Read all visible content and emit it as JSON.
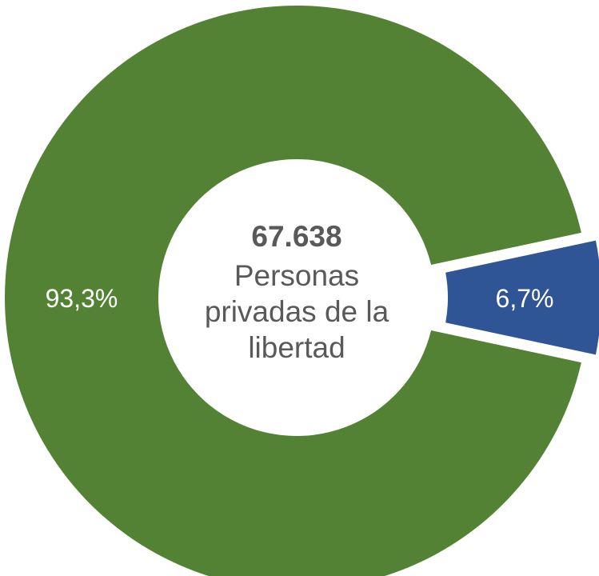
{
  "chart_data": {
    "type": "pie",
    "style": "donut",
    "exploded_slice": "6,7%",
    "center": {
      "total": "67.638",
      "label_lines": [
        "Personas",
        "privadas de la",
        "libertad"
      ]
    },
    "slices": [
      {
        "value": 93.3,
        "label": "93,3%",
        "color": "#548235"
      },
      {
        "value": 6.7,
        "label": "6,7%",
        "color": "#2f5597"
      }
    ]
  }
}
